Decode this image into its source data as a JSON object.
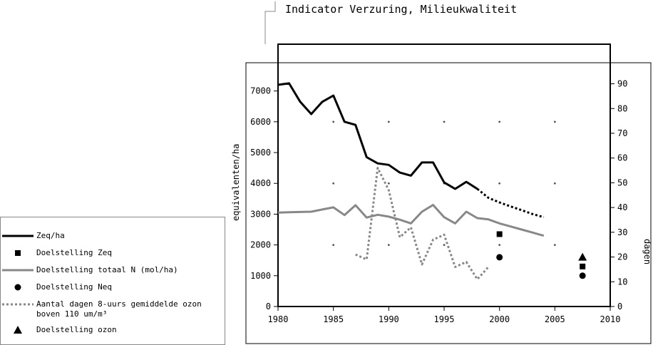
{
  "title": "Indicator Verzuring, Milieukwaliteit",
  "legend": [
    {
      "label": "Zeq/ha",
      "symbol": "line-black"
    },
    {
      "label": "Doelstelling Zeq",
      "symbol": "square"
    },
    {
      "label": "Doelstelling totaal N (mol/ha)",
      "symbol": "line-gray"
    },
    {
      "label": "Doelstelling Neq",
      "symbol": "circle"
    },
    {
      "label": "Aantal dagen 8-uurs gemiddelde ozon",
      "label2": "boven 110 um/m³",
      "symbol": "dotted-gray"
    },
    {
      "label": "Doelstelling ozon",
      "symbol": "triangle"
    }
  ],
  "colors": {
    "zeq": "#000000",
    "totaal_n": "#888888",
    "ozon": "#888888"
  },
  "chart_data": {
    "type": "line",
    "title": "Indicator Verzuring, Milieukwaliteit",
    "xlabel": "",
    "ylabel": "equivalenten/ha",
    "y2label": "dagen",
    "xlim": [
      1980,
      2010
    ],
    "ylim": [
      0,
      8000
    ],
    "y2lim": [
      0,
      100
    ],
    "x_ticks": [
      1980,
      1985,
      1990,
      1995,
      2000,
      2005,
      2010
    ],
    "y_ticks": [
      0,
      1000,
      2000,
      3000,
      4000,
      5000,
      6000,
      7000
    ],
    "y2_ticks": [
      0,
      10,
      20,
      30,
      40,
      50,
      60,
      70,
      80,
      90
    ],
    "grid": "dots",
    "series": [
      {
        "name": "Zeq/ha",
        "axis": "left",
        "style": "solid-black",
        "x": [
          1980,
          1981,
          1982,
          1983,
          1984,
          1985,
          1986,
          1987,
          1988,
          1989,
          1990,
          1991,
          1992,
          1993,
          1994,
          1995,
          1996,
          1997,
          1998
        ],
        "y": [
          7200,
          7250,
          6650,
          6250,
          6650,
          6850,
          6000,
          5900,
          4850,
          4650,
          4600,
          4350,
          4250,
          4680,
          4680,
          4030,
          3820,
          4050,
          3820
        ]
      },
      {
        "name": "Zeq/ha",
        "axis": "left",
        "style": "dotted-black",
        "x": [
          1998,
          1999,
          2000,
          2001,
          2002,
          2003,
          2004
        ],
        "y": [
          3820,
          3530,
          3380,
          3250,
          3130,
          3000,
          2900
        ]
      },
      {
        "name": "Doelstelling totaal N (mol/ha)",
        "axis": "left",
        "style": "solid-gray",
        "x": [
          1980,
          1981,
          1982,
          1983,
          1984,
          1985,
          1986,
          1987,
          1988,
          1989,
          1990,
          1991,
          1992,
          1993,
          1994,
          1995,
          1996,
          1997,
          1998,
          1999,
          2000,
          2001,
          2002,
          2003,
          2004
        ],
        "y": [
          3050,
          3060,
          3070,
          3080,
          3150,
          3220,
          2970,
          3290,
          2890,
          2980,
          2920,
          2820,
          2700,
          3080,
          3300,
          2900,
          2700,
          3080,
          2870,
          2830,
          2700,
          2600,
          2500,
          2400,
          2300
        ]
      },
      {
        "name": "Aantal dagen 8-uurs gemiddelde ozon boven 110 um/m³",
        "axis": "right",
        "style": "dotted-gray",
        "x": [
          1987,
          1988,
          1989,
          1990,
          1991,
          1992,
          1993,
          1994,
          1995,
          1996,
          1997,
          1998,
          1999
        ],
        "y": [
          21,
          19,
          56,
          47,
          28,
          32,
          17,
          27,
          29,
          16,
          18,
          11,
          16
        ]
      }
    ],
    "targets": [
      {
        "name": "Doelstelling Zeq",
        "marker": "square",
        "axis": "left",
        "points": [
          [
            2000,
            2350
          ],
          [
            2007.5,
            1300
          ]
        ]
      },
      {
        "name": "Doelstelling Neq",
        "marker": "circle",
        "axis": "left",
        "points": [
          [
            2000,
            1600
          ],
          [
            2007.5,
            1000
          ]
        ]
      },
      {
        "name": "Doelstelling ozon",
        "marker": "triangle",
        "axis": "right",
        "points": [
          [
            2007.5,
            20
          ]
        ]
      }
    ]
  }
}
